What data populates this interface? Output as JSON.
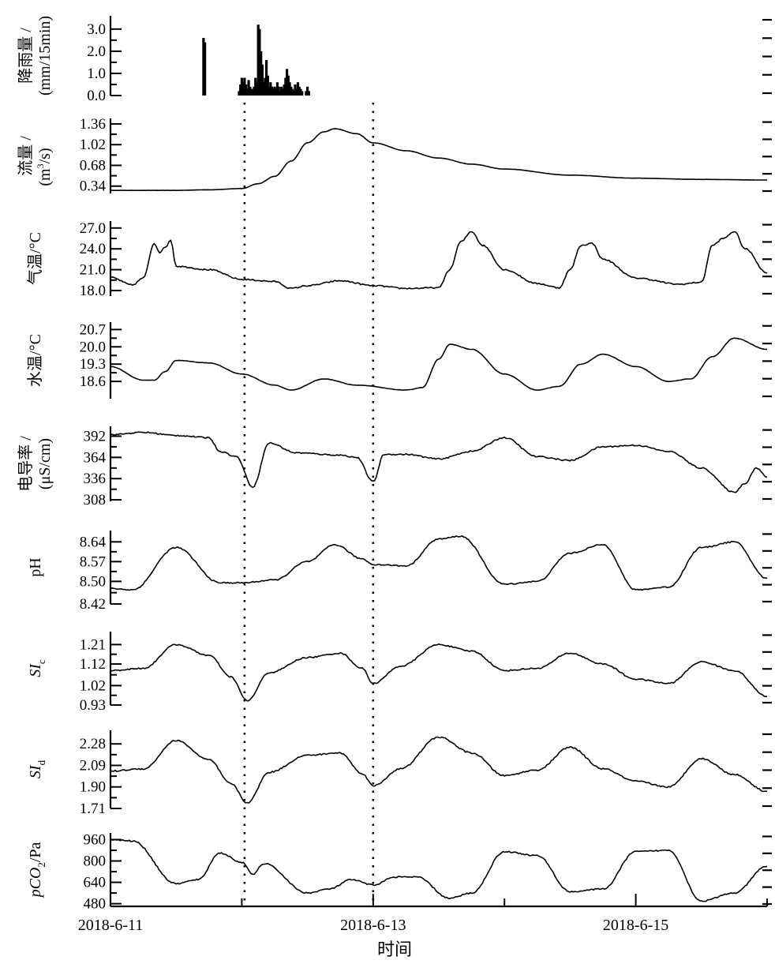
{
  "chart_data": [
    {
      "type": "bar",
      "ylabel": "降雨量 / (mm/15min)",
      "ylabel_lines": [
        "降雨量 /",
        "(mm/15min)"
      ],
      "ticks": [
        "0.0",
        "1.0",
        "2.0",
        "3.0"
      ],
      "ylim": [
        0,
        3.6
      ],
      "x": [
        "6-11 17:00",
        "6-11 17:15",
        "6-11 23:30",
        "6-11 23:45",
        "6-12 00:00",
        "6-12 00:15",
        "6-12 00:30",
        "6-12 00:45",
        "6-12 01:00",
        "6-12 01:15",
        "6-12 01:30",
        "6-12 01:45",
        "6-12 02:00",
        "6-12 02:15",
        "6-12 02:30",
        "6-12 02:45",
        "6-12 03:00",
        "6-12 03:15",
        "6-12 03:30",
        "6-12 03:45",
        "6-12 04:00",
        "6-12 04:15",
        "6-12 04:30",
        "6-12 04:45",
        "6-12 05:00",
        "6-12 05:15",
        "6-12 05:30",
        "6-12 05:45",
        "6-12 06:00",
        "6-12 06:15",
        "6-12 06:30",
        "6-12 06:45",
        "6-12 07:00",
        "6-12 07:15",
        "6-12 07:30",
        "6-12 07:45",
        "6-12 08:00",
        "6-12 08:15",
        "6-12 08:30",
        "6-12 08:45",
        "6-12 09:00",
        "6-12 09:15",
        "6-12 09:30",
        "6-12 09:45",
        "6-12 10:00",
        "6-12 10:15",
        "6-12 10:30",
        "6-12 10:45",
        "6-12 11:00",
        "6-12 11:15",
        "6-12 11:30",
        "6-12 11:45",
        "6-12 12:00",
        "6-12 12:15"
      ],
      "values": [
        2.6,
        2.4,
        0.2,
        0.5,
        0.8,
        0.6,
        0.8,
        0.5,
        0.3,
        0.7,
        0.4,
        0.3,
        0.3,
        0.4,
        0.8,
        0.6,
        3.2,
        3.0,
        2.0,
        1.4,
        0.6,
        0.8,
        1.6,
        0.9,
        0.4,
        0.6,
        0.4,
        0.3,
        0.4,
        0.3,
        0.6,
        0.4,
        0.2,
        0.4,
        0.3,
        0.5,
        0.8,
        1.2,
        0.9,
        0.6,
        0.4,
        0.3,
        0.2,
        0.5,
        0.3,
        0.6,
        0.4,
        0.3,
        0.2,
        0.0,
        0.0,
        0.2,
        0.4,
        0.2
      ]
    },
    {
      "type": "line",
      "ylabel": "流量 / (m³/s)",
      "ylabel_lines": [
        "流量 /",
        "(m",
        "3",
        "/s)"
      ],
      "ticks": [
        "0.34",
        "0.68",
        "1.02",
        "1.36"
      ],
      "ylim": [
        0.22,
        1.45
      ],
      "x": [
        "6-11 00:00",
        "6-11 12:00",
        "6-11 18:00",
        "6-12 00:00",
        "6-12 03:00",
        "6-12 06:00",
        "6-12 09:00",
        "6-12 12:00",
        "6-12 15:00",
        "6-12 17:00",
        "6-12 21:00",
        "6-13 00:00",
        "6-13 06:00",
        "6-13 12:00",
        "6-13 18:00",
        "6-14 00:00",
        "6-14 12:00",
        "6-15 00:00",
        "6-15 12:00",
        "6-16 00:00"
      ],
      "values": [
        0.27,
        0.27,
        0.28,
        0.3,
        0.38,
        0.5,
        0.75,
        1.05,
        1.23,
        1.28,
        1.2,
        1.05,
        0.92,
        0.8,
        0.7,
        0.62,
        0.52,
        0.47,
        0.45,
        0.44
      ]
    },
    {
      "type": "line",
      "ylabel": "气温/°C",
      "ylabel_lines": [
        "气温/°C"
      ],
      "ticks": [
        "18.0",
        "21.0",
        "24.0",
        "27.0"
      ],
      "ylim": [
        17.2,
        28.0
      ],
      "x": [
        "6-11 00:00",
        "6-11 04:00",
        "6-11 06:00",
        "6-11 08:00",
        "6-11 09:00",
        "6-11 10:00",
        "6-11 11:00",
        "6-11 12:00",
        "6-11 18:00",
        "6-12 00:00",
        "6-12 06:00",
        "6-12 09:00",
        "6-12 12:00",
        "6-12 18:00",
        "6-13 00:00",
        "6-13 06:00",
        "6-13 12:00",
        "6-13 14:00",
        "6-13 16:00",
        "6-13 18:00",
        "6-13 20:00",
        "6-14 00:00",
        "6-14 06:00",
        "6-14 10:00",
        "6-14 12:00",
        "6-14 14:00",
        "6-14 16:00",
        "6-14 18:00",
        "6-15 00:00",
        "6-15 08:00",
        "6-15 12:00",
        "6-15 14:00",
        "6-15 16:00",
        "6-15 18:00",
        "6-15 20:00",
        "6-16 00:00"
      ],
      "values": [
        19.9,
        18.8,
        19.8,
        24.8,
        23.5,
        24.2,
        25.3,
        21.5,
        21.0,
        19.6,
        19.3,
        18.3,
        18.7,
        19.4,
        18.7,
        18.3,
        18.4,
        21.0,
        25.0,
        26.5,
        24.5,
        21.0,
        19.0,
        18.4,
        21.0,
        24.5,
        24.8,
        22.5,
        19.8,
        18.9,
        19.2,
        24.5,
        25.5,
        26.5,
        24.0,
        20.5
      ]
    },
    {
      "type": "line",
      "ylabel": "水温/°C",
      "ylabel_lines": [
        "水温/°C"
      ],
      "ticks": [
        "18.6",
        "19.3",
        "20.0",
        "20.7"
      ],
      "ylim": [
        17.9,
        21.0
      ],
      "x": [
        "6-11 00:00",
        "6-11 06:00",
        "6-11 08:00",
        "6-11 10:00",
        "6-11 12:00",
        "6-11 18:00",
        "6-12 00:00",
        "6-12 06:00",
        "6-12 09:00",
        "6-12 15:00",
        "6-12 21:00",
        "6-13 06:00",
        "6-13 09:00",
        "6-13 12:00",
        "6-13 14:00",
        "6-13 18:00",
        "6-14 00:00",
        "6-14 06:00",
        "6-14 10:00",
        "6-14 14:00",
        "6-14 18:00",
        "6-15 00:00",
        "6-15 06:00",
        "6-15 10:00",
        "6-15 14:00",
        "6-15 18:00",
        "6-16 00:00"
      ],
      "values": [
        19.2,
        18.65,
        18.65,
        19.0,
        19.45,
        19.35,
        18.9,
        18.45,
        18.25,
        18.7,
        18.45,
        18.25,
        18.35,
        19.5,
        20.1,
        19.9,
        18.9,
        18.25,
        18.4,
        19.3,
        19.7,
        19.2,
        18.6,
        18.7,
        19.6,
        20.35,
        19.9
      ]
    },
    {
      "type": "line",
      "ylabel": "电导率 / (μS/cm)",
      "ylabel_lines": [
        "电导率 /",
        "(μS/cm)"
      ],
      "ticks": [
        "308",
        "336",
        "364",
        "392"
      ],
      "ylim": [
        306,
        405
      ],
      "x": [
        "6-11 00:00",
        "6-11 06:00",
        "6-11 12:00",
        "6-11 18:00",
        "6-11 20:00",
        "6-11 23:00",
        "6-12 02:00",
        "6-12 05:00",
        "6-12 10:00",
        "6-12 18:00",
        "6-12 21:00",
        "6-13 00:00",
        "6-13 02:00",
        "6-13 06:00",
        "6-13 12:00",
        "6-13 18:00",
        "6-14 00:00",
        "6-14 06:00",
        "6-14 12:00",
        "6-14 18:00",
        "6-15 00:00",
        "6-15 06:00",
        "6-15 12:00",
        "6-15 18:00",
        "6-15 20:00",
        "6-15 22:00",
        "6-16 00:00"
      ],
      "values": [
        394,
        397,
        393,
        390,
        372,
        365,
        325,
        383,
        370,
        367,
        364,
        332,
        368,
        368,
        362,
        372,
        390,
        365,
        360,
        378,
        380,
        372,
        350,
        318,
        330,
        350,
        338
      ]
    },
    {
      "type": "line",
      "ylabel": "pH",
      "ylabel_lines": [
        "pH"
      ],
      "ticks": [
        "8.42",
        "8.50",
        "8.57",
        "8.64"
      ],
      "ylim": [
        8.42,
        8.68
      ],
      "x": [
        "6-11 00:00",
        "6-11 04:00",
        "6-11 12:00",
        "6-11 20:00",
        "6-12 00:00",
        "6-12 06:00",
        "6-12 12:00",
        "6-12 17:00",
        "6-12 22:00",
        "6-13 00:00",
        "6-13 06:00",
        "6-13 12:00",
        "6-13 16:00",
        "6-14 00:00",
        "6-14 06:00",
        "6-14 12:00",
        "6-14 18:00",
        "6-15 00:00",
        "6-15 06:00",
        "6-15 12:00",
        "6-15 18:00",
        "6-16 00:00"
      ],
      "values": [
        8.475,
        8.47,
        8.62,
        8.495,
        8.495,
        8.505,
        8.57,
        8.63,
        8.58,
        8.56,
        8.555,
        8.65,
        8.66,
        8.49,
        8.5,
        8.6,
        8.63,
        8.47,
        8.48,
        8.62,
        8.64,
        8.51
      ]
    },
    {
      "type": "line",
      "ylabel": "SIc",
      "ylabel_main": "SI",
      "ylabel_sub": "c",
      "ticks": [
        "0.93",
        "1.02",
        "1.12",
        "1.21"
      ],
      "ylim": [
        0.93,
        1.27
      ],
      "x": [
        "6-11 00:00",
        "6-11 06:00",
        "6-11 12:00",
        "6-11 18:00",
        "6-11 22:00",
        "6-12 01:00",
        "6-12 05:00",
        "6-12 12:00",
        "6-12 18:00",
        "6-12 22:00",
        "6-13 00:00",
        "6-13 05:00",
        "6-13 12:00",
        "6-13 18:00",
        "6-14 00:00",
        "6-14 06:00",
        "6-14 12:00",
        "6-14 18:00",
        "6-15 00:00",
        "6-15 06:00",
        "6-15 12:00",
        "6-15 18:00",
        "6-16 00:00"
      ],
      "values": [
        1.09,
        1.1,
        1.21,
        1.16,
        1.06,
        0.95,
        1.08,
        1.15,
        1.17,
        1.1,
        1.03,
        1.11,
        1.21,
        1.18,
        1.09,
        1.1,
        1.17,
        1.12,
        1.05,
        1.03,
        1.13,
        1.09,
        0.97
      ]
    },
    {
      "type": "line",
      "ylabel": "SId",
      "ylabel_main": "SI",
      "ylabel_sub": "d",
      "ticks": [
        "1.71",
        "1.90",
        "2.09",
        "2.28"
      ],
      "ylim": [
        1.71,
        2.4
      ],
      "x": [
        "6-11 00:00",
        "6-11 06:00",
        "6-11 12:00",
        "6-11 18:00",
        "6-11 22:00",
        "6-12 01:00",
        "6-12 05:00",
        "6-12 12:00",
        "6-12 18:00",
        "6-12 22:00",
        "6-13 00:00",
        "6-13 05:00",
        "6-13 12:00",
        "6-13 18:00",
        "6-14 00:00",
        "6-14 06:00",
        "6-14 12:00",
        "6-14 18:00",
        "6-15 00:00",
        "6-15 06:00",
        "6-15 12:00",
        "6-15 18:00",
        "6-16 00:00"
      ],
      "values": [
        2.04,
        2.06,
        2.31,
        2.14,
        1.93,
        1.76,
        2.03,
        2.18,
        2.2,
        2.02,
        1.91,
        2.06,
        2.34,
        2.2,
        2.0,
        2.05,
        2.25,
        2.06,
        1.95,
        1.9,
        2.15,
        2.01,
        1.86
      ]
    },
    {
      "type": "line",
      "ylabel": "pCO₂/Pa",
      "ylabel_main": "pCO",
      "ylabel_sub": "2",
      "ylabel_tail": "/Pa",
      "ticks": [
        "480",
        "640",
        "800",
        "960"
      ],
      "ylim": [
        460,
        1010
      ],
      "x": [
        "6-11 00:00",
        "6-11 04:00",
        "6-11 12:00",
        "6-11 16:00",
        "6-11 20:00",
        "6-12 00:00",
        "6-12 02:00",
        "6-12 04:00",
        "6-12 12:00",
        "6-12 16:00",
        "6-12 20:00",
        "6-13 00:00",
        "6-13 04:00",
        "6-13 08:00",
        "6-13 14:00",
        "6-13 18:00",
        "6-14 00:00",
        "6-14 06:00",
        "6-14 12:00",
        "6-14 18:00",
        "6-15 00:00",
        "6-15 06:00",
        "6-15 12:00",
        "6-15 18:00",
        "6-16 00:00"
      ],
      "values": [
        960,
        950,
        630,
        660,
        860,
        790,
        700,
        780,
        560,
        590,
        660,
        620,
        680,
        680,
        520,
        560,
        870,
        840,
        570,
        590,
        870,
        880,
        500,
        560,
        760
      ]
    }
  ],
  "x_axis": {
    "ticks": [
      "2018-6-11",
      "2018-6-13",
      "2018-6-15"
    ],
    "start": "6-11 00:00",
    "end": "6-16 00:00",
    "label": "时间"
  },
  "event_markers": [
    "6-12 00:30",
    "6-13 00:00"
  ]
}
